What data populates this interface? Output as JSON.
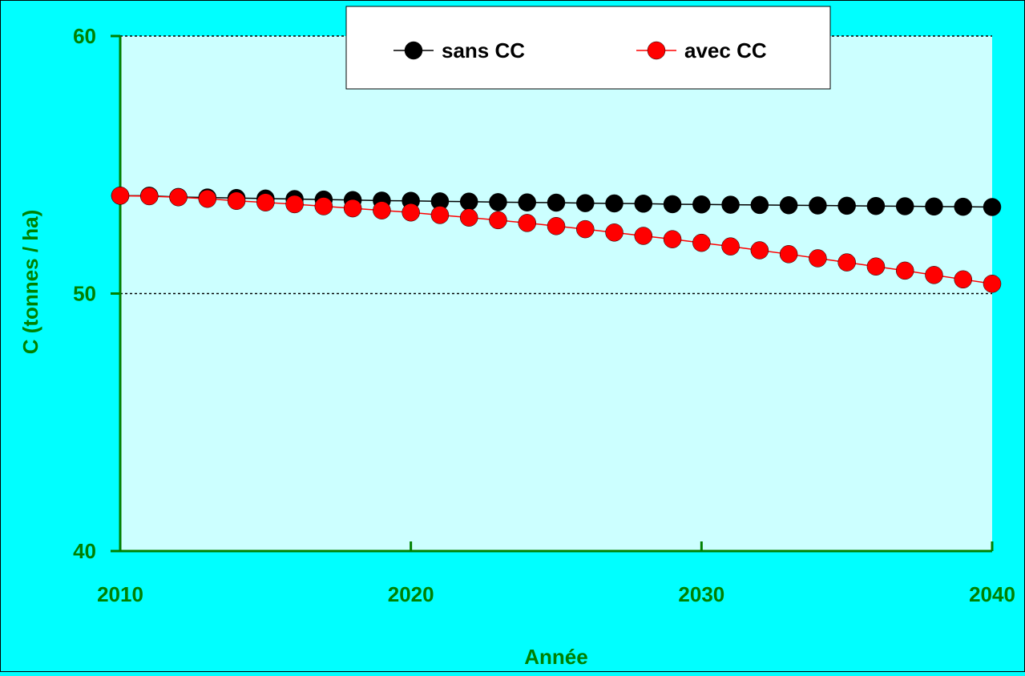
{
  "chart_data": {
    "type": "line",
    "title": "",
    "xlabel": "Année",
    "ylabel": "C (tonnes / ha)",
    "xlim": [
      2010,
      2040
    ],
    "ylim": [
      40,
      60
    ],
    "x_ticks": [
      "2010",
      "2020",
      "2030",
      "2040"
    ],
    "y_ticks": [
      "40",
      "50",
      "60"
    ],
    "x": [
      2010,
      2011,
      2012,
      2013,
      2014,
      2015,
      2016,
      2017,
      2018,
      2019,
      2020,
      2021,
      2022,
      2023,
      2024,
      2025,
      2026,
      2027,
      2028,
      2029,
      2030,
      2031,
      2032,
      2033,
      2034,
      2035,
      2036,
      2037,
      2038,
      2039,
      2040
    ],
    "series": [
      {
        "name": "sans CC",
        "color": "#000000",
        "values": [
          53.8,
          53.8,
          53.75,
          53.73,
          53.71,
          53.69,
          53.67,
          53.65,
          53.63,
          53.61,
          53.6,
          53.58,
          53.57,
          53.55,
          53.54,
          53.53,
          53.51,
          53.5,
          53.49,
          53.47,
          53.46,
          53.45,
          53.44,
          53.43,
          53.42,
          53.41,
          53.4,
          53.39,
          53.38,
          53.37,
          53.36
        ]
      },
      {
        "name": "avec CC",
        "color": "#ff0000",
        "values": [
          53.8,
          53.78,
          53.74,
          53.68,
          53.6,
          53.54,
          53.47,
          53.39,
          53.31,
          53.23,
          53.15,
          53.05,
          52.95,
          52.85,
          52.74,
          52.62,
          52.5,
          52.37,
          52.24,
          52.11,
          51.97,
          51.83,
          51.68,
          51.53,
          51.37,
          51.21,
          51.05,
          50.89,
          50.72,
          50.55,
          50.38
        ]
      }
    ],
    "grid": "dotted horizontal at y-ticks",
    "legend_position": "top-center",
    "colors": {
      "page_background": "#00ffff",
      "plot_background": "#ccffff",
      "axis_and_text": "#008000",
      "legend_background": "#ffffff"
    }
  }
}
